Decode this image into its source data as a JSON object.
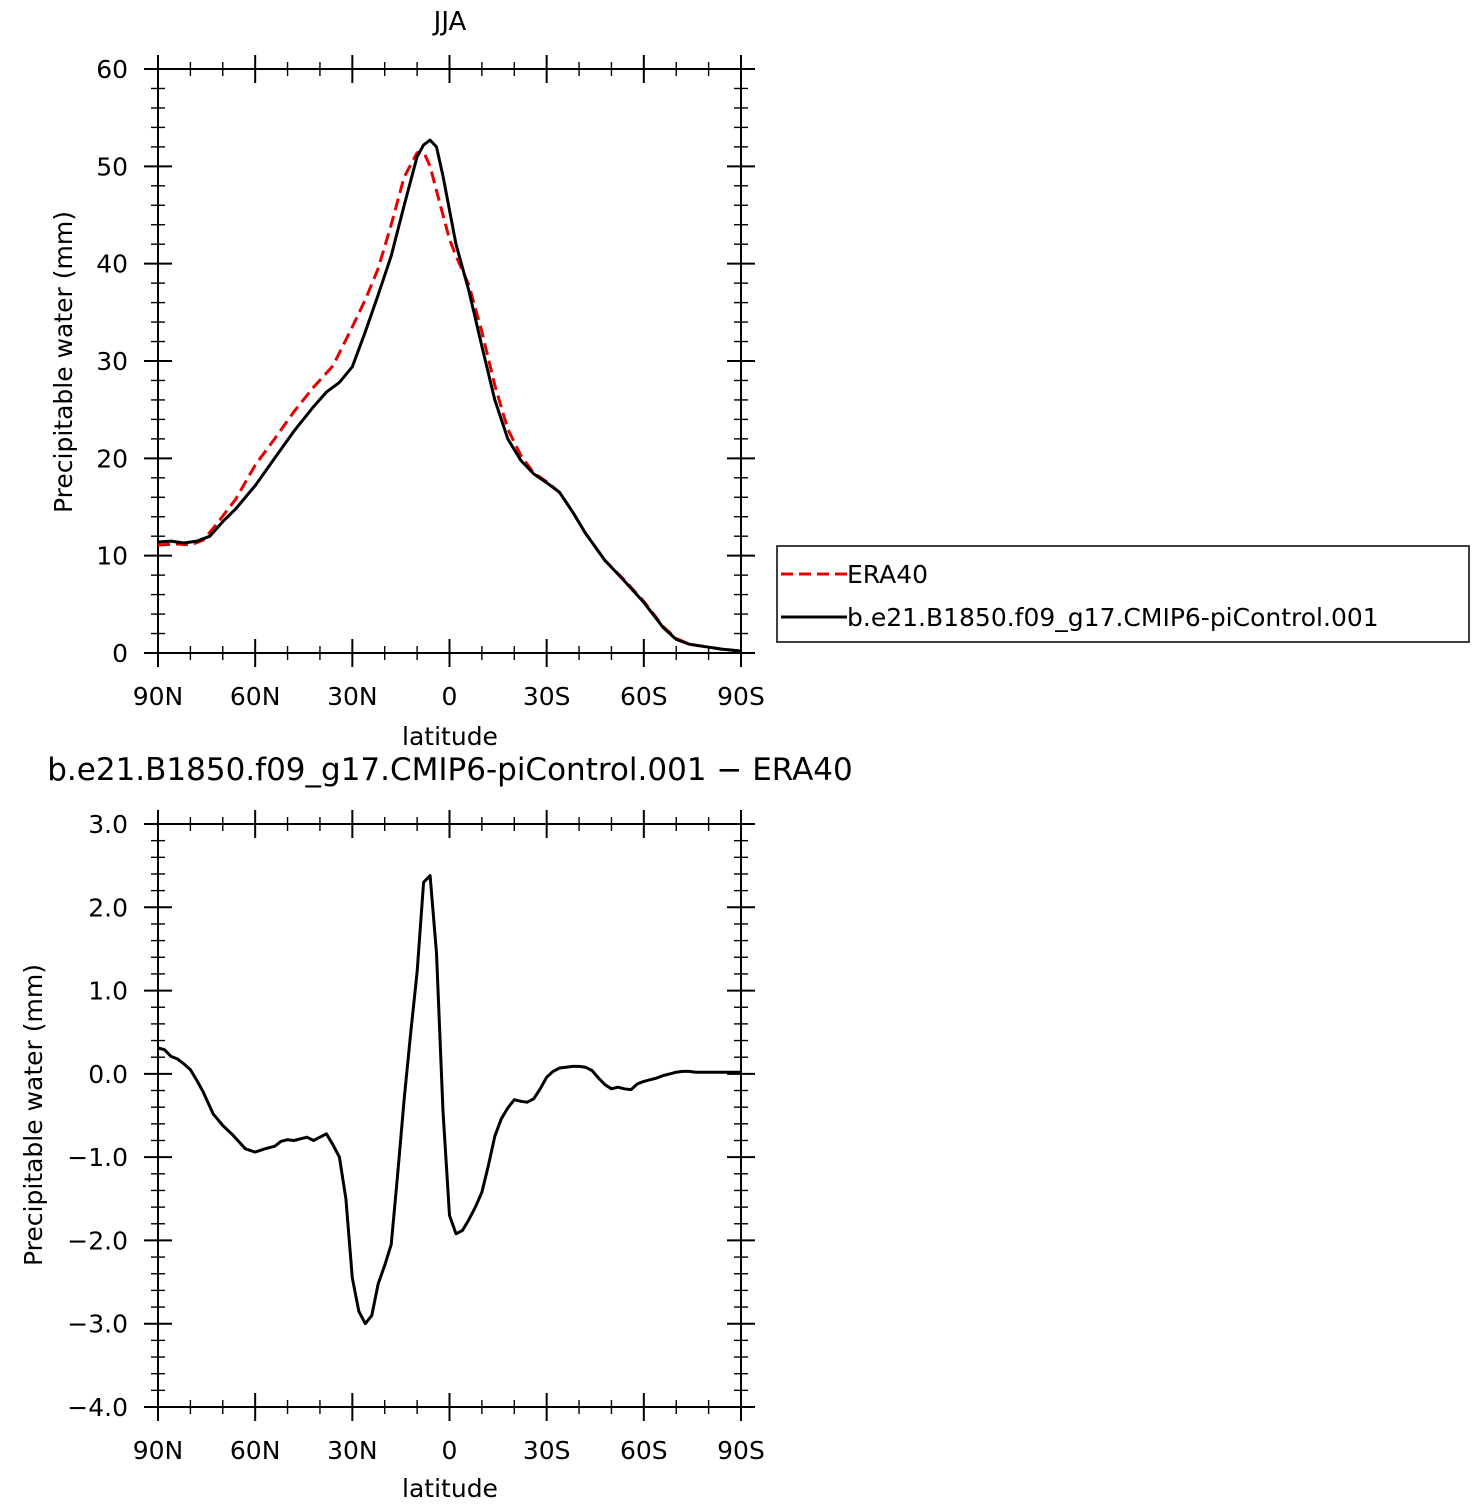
{
  "chart_data": [
    {
      "type": "line",
      "title": "JJA",
      "xlabel": "latitude",
      "ylabel": "Precipitable water (mm)",
      "xlim": [
        -90,
        90
      ],
      "ylim": [
        0,
        60
      ],
      "yticks": [
        0,
        10,
        20,
        30,
        40,
        50,
        60
      ],
      "xticks": [
        -90,
        -60,
        -30,
        0,
        30,
        60,
        90
      ],
      "xtick_labels": [
        "90N",
        "60N",
        "30N",
        "0",
        "30S",
        "60S",
        "90S"
      ],
      "ytick_labels": [
        "0",
        "10",
        "20",
        "30",
        "40",
        "50",
        "60"
      ],
      "legend_position": "right",
      "series": [
        {
          "name": "ERA40",
          "style": "dashed",
          "color": "#e60000",
          "x": [
            -90,
            -84,
            -80,
            -76,
            -72,
            -66,
            -60,
            -54,
            -48,
            -42,
            -36,
            -30,
            -26,
            -22,
            -18,
            -14,
            -10,
            -8,
            -6,
            -4,
            -2,
            0,
            2,
            6,
            10,
            14,
            18,
            22,
            26,
            30,
            34,
            38,
            42,
            48,
            54,
            60,
            66,
            70,
            74,
            78,
            84,
            90
          ],
          "y": [
            11.1,
            11.2,
            11.1,
            11.6,
            13.2,
            15.8,
            19.3,
            22.0,
            24.8,
            27.3,
            29.5,
            33.5,
            36.3,
            39.5,
            44.0,
            48.9,
            51.4,
            51.5,
            50.0,
            47.5,
            45.0,
            42.5,
            40.8,
            37.8,
            33.0,
            27.5,
            23.0,
            20.3,
            18.5,
            17.6,
            16.5,
            14.5,
            12.3,
            9.5,
            7.5,
            5.3,
            2.7,
            1.5,
            0.9,
            0.7,
            0.4,
            0.2
          ]
        },
        {
          "name": "b.e21.B1850.f09_g17.CMIP6-piControl.001",
          "style": "solid",
          "color": "#000000",
          "x": [
            -90,
            -86,
            -82,
            -78,
            -74,
            -70,
            -66,
            -60,
            -54,
            -48,
            -42,
            -38,
            -34,
            -30,
            -26,
            -22,
            -18,
            -14,
            -10,
            -8,
            -6,
            -4,
            -2,
            0,
            2,
            6,
            10,
            14,
            18,
            22,
            26,
            30,
            34,
            38,
            42,
            48,
            54,
            60,
            66,
            70,
            74,
            78,
            84,
            90
          ],
          "y": [
            11.4,
            11.5,
            11.3,
            11.5,
            12.0,
            13.5,
            14.8,
            17.2,
            20.0,
            22.8,
            25.3,
            26.8,
            27.8,
            29.4,
            33.0,
            36.8,
            40.8,
            46.0,
            51.0,
            52.2,
            52.7,
            52.0,
            49.0,
            45.5,
            42.0,
            37.2,
            31.5,
            26.0,
            22.0,
            19.8,
            18.4,
            17.5,
            16.5,
            14.5,
            12.3,
            9.5,
            7.4,
            5.2,
            2.6,
            1.4,
            0.9,
            0.7,
            0.4,
            0.2
          ]
        }
      ]
    },
    {
      "type": "line",
      "title": "b.e21.B1850.f09_g17.CMIP6-piControl.001 − ERA40",
      "xlabel": "latitude",
      "ylabel": "Precipitable water (mm)",
      "xlim": [
        -90,
        90
      ],
      "ylim": [
        -4.0,
        3.0
      ],
      "yticks": [
        -4.0,
        -3.0,
        -2.0,
        -1.0,
        0.0,
        1.0,
        2.0,
        3.0
      ],
      "xticks": [
        -90,
        -60,
        -30,
        0,
        30,
        60,
        90
      ],
      "xtick_labels": [
        "90N",
        "60N",
        "30N",
        "0",
        "30S",
        "60S",
        "90S"
      ],
      "ytick_labels": [
        "−4.0",
        "−3.0",
        "−2.0",
        "−1.0",
        "0.0",
        "1.0",
        "2.0",
        "3.0"
      ],
      "series": [
        {
          "style": "solid",
          "color": "#000000",
          "x": [
            -90,
            -88,
            -86,
            -84,
            -82,
            -80,
            -78,
            -76,
            -73,
            -70,
            -67,
            -63,
            -60,
            -57,
            -54,
            -52,
            -50,
            -48,
            -46,
            -44,
            -42,
            -40,
            -38,
            -36,
            -34,
            -32,
            -30,
            -28,
            -26,
            -24,
            -22,
            -20,
            -18,
            -16,
            -14,
            -12,
            -10,
            -8,
            -6,
            -4,
            -2,
            0,
            2,
            4,
            6,
            8,
            10,
            12,
            14,
            16,
            18,
            20,
            22,
            24,
            26,
            28,
            30,
            32,
            34,
            36,
            38,
            40,
            42,
            44,
            46,
            48,
            50,
            52,
            54,
            56,
            58,
            60,
            62,
            64,
            66,
            68,
            70,
            72,
            74,
            76,
            78,
            80,
            82,
            84,
            86,
            88,
            90
          ],
          "y": [
            0.31,
            0.29,
            0.21,
            0.18,
            0.12,
            0.05,
            -0.08,
            -0.22,
            -0.48,
            -0.62,
            -0.73,
            -0.9,
            -0.94,
            -0.9,
            -0.87,
            -0.81,
            -0.79,
            -0.8,
            -0.78,
            -0.76,
            -0.8,
            -0.76,
            -0.72,
            -0.85,
            -1.0,
            -1.5,
            -2.45,
            -2.85,
            -3.0,
            -2.9,
            -2.52,
            -2.3,
            -2.05,
            -1.2,
            -0.3,
            0.48,
            1.22,
            2.3,
            2.38,
            1.45,
            -0.45,
            -1.7,
            -1.92,
            -1.88,
            -1.75,
            -1.6,
            -1.42,
            -1.1,
            -0.75,
            -0.54,
            -0.41,
            -0.31,
            -0.33,
            -0.34,
            -0.3,
            -0.18,
            -0.04,
            0.03,
            0.07,
            0.08,
            0.09,
            0.09,
            0.08,
            0.04,
            -0.05,
            -0.13,
            -0.18,
            -0.16,
            -0.18,
            -0.19,
            -0.12,
            -0.09,
            -0.07,
            -0.05,
            -0.02,
            0.0,
            0.02,
            0.03,
            0.03,
            0.02,
            0.02,
            0.02,
            0.02,
            0.02,
            0.02,
            0.02,
            0.02
          ]
        }
      ]
    }
  ]
}
